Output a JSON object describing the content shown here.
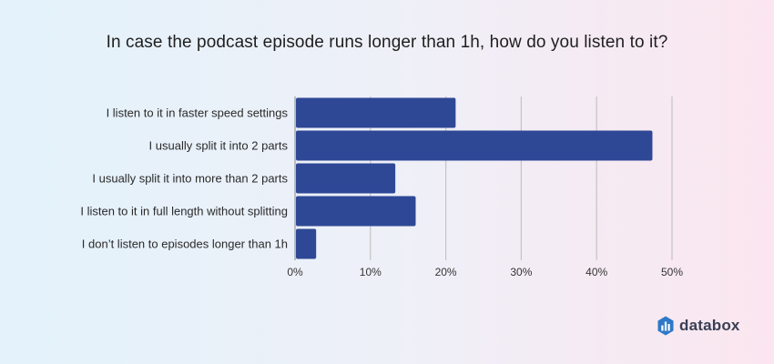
{
  "chart_data": {
    "type": "bar",
    "orientation": "horizontal",
    "title": "In case the podcast episode runs longer than 1h, how do you listen to it?",
    "categories": [
      "I listen to it in faster speed settings",
      "I usually split it into 2 parts",
      "I usually split it into more than 2 parts",
      "I listen to it in full length without splitting",
      "I don’t listen to episodes longer than 1h"
    ],
    "values": [
      21.3,
      47.4,
      13.3,
      16.0,
      2.8
    ],
    "xlim": [
      0,
      50
    ],
    "xticks": [
      0,
      10,
      20,
      30,
      40,
      50
    ],
    "xtick_labels": [
      "0%",
      "10%",
      "20%",
      "30%",
      "40%",
      "50%"
    ],
    "grid": "vertical",
    "bar_color": "#2e4896"
  },
  "brand": {
    "name": "databox",
    "icon": "databox-logo-icon",
    "icon_color": "#2e78c7"
  }
}
